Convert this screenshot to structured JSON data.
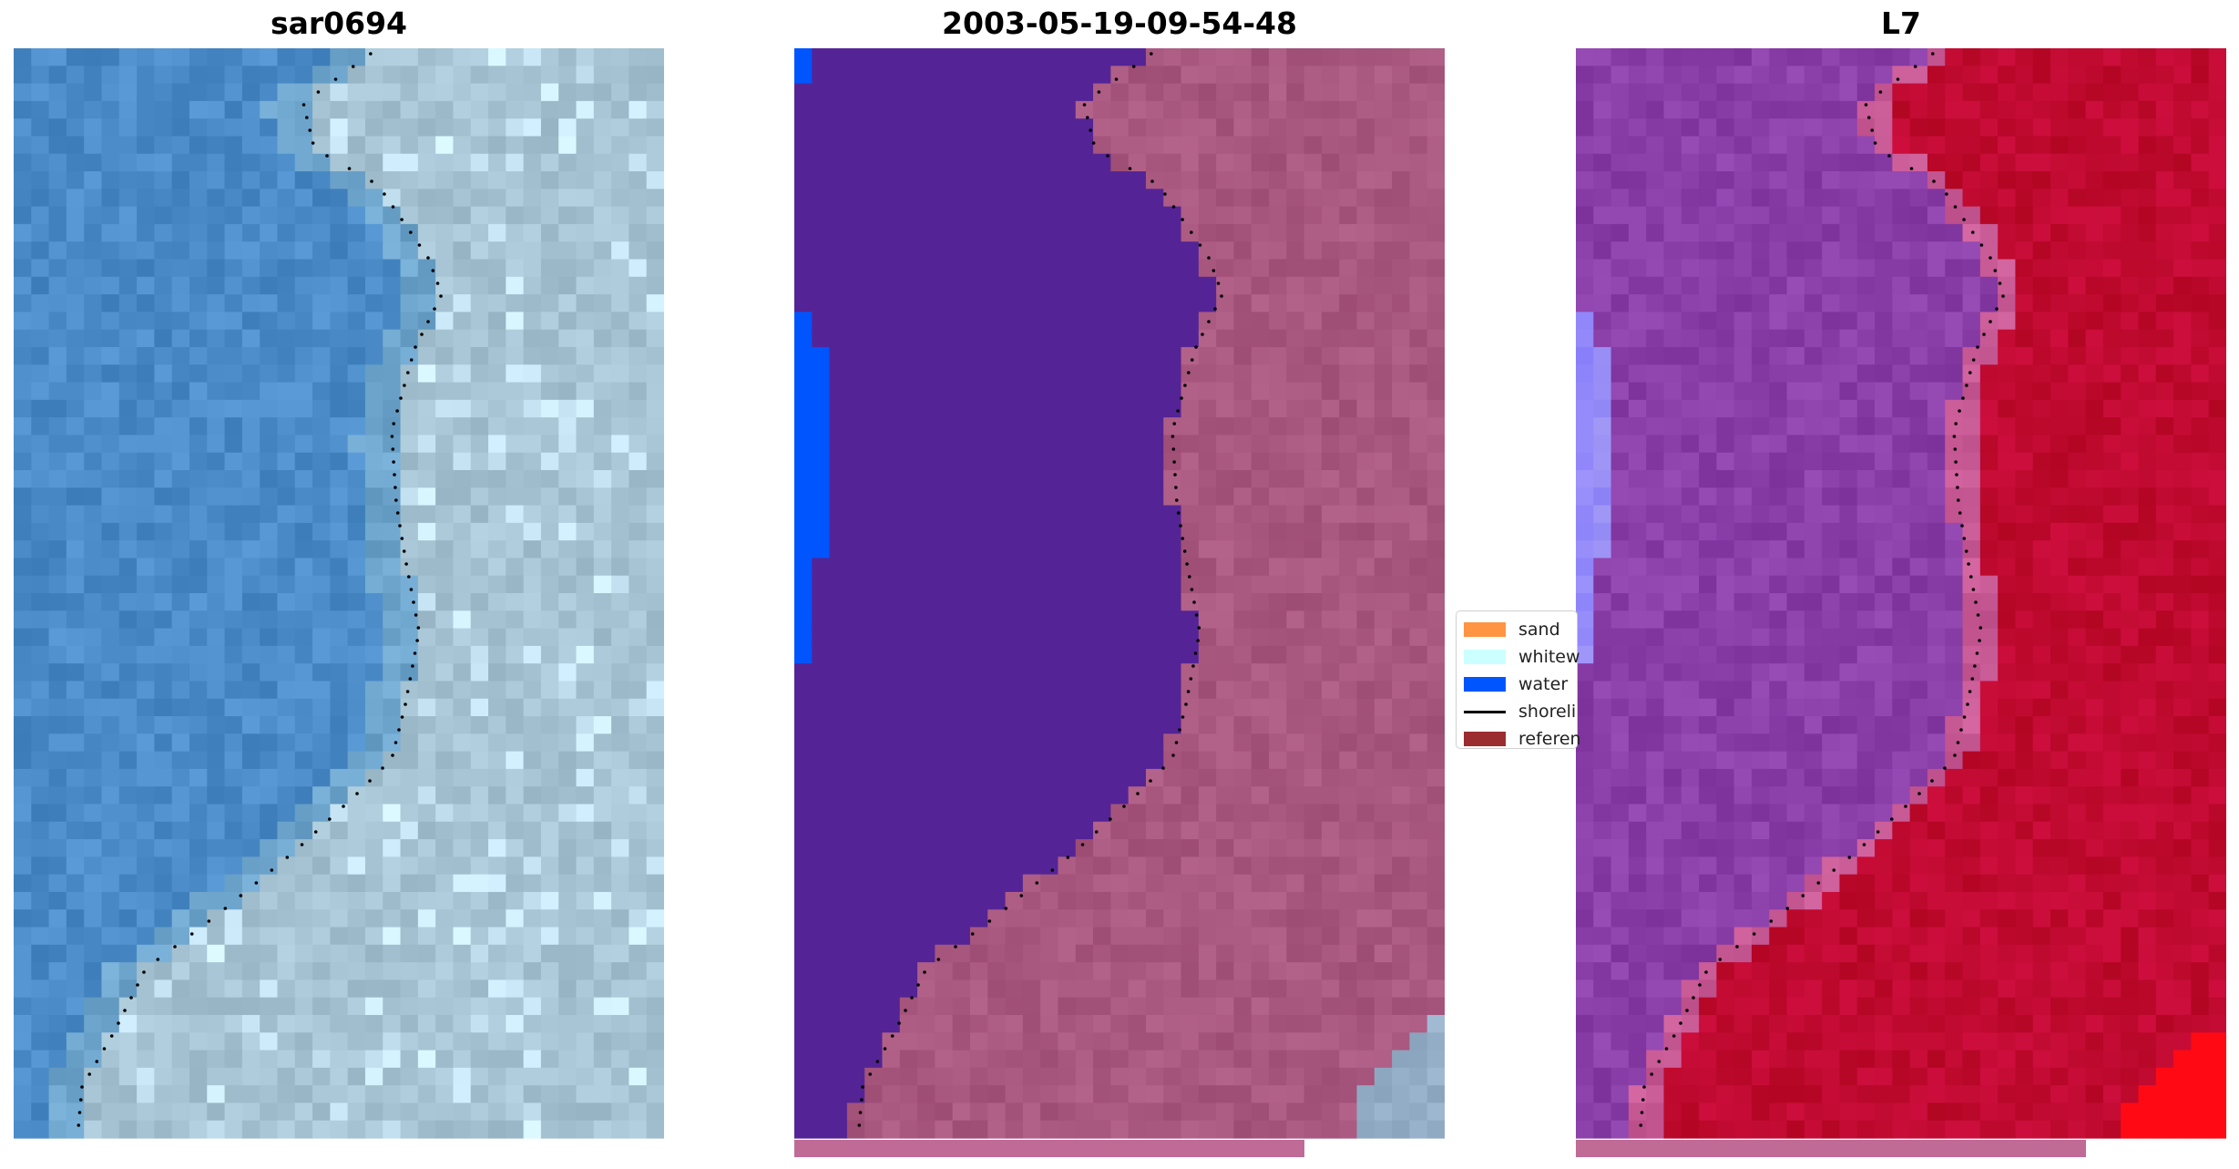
{
  "panels": [
    {
      "title": "sar0694",
      "palette": "rgb"
    },
    {
      "title": "2003-05-19-09-54-48",
      "palette": "classified"
    },
    {
      "title": "L7",
      "palette": "index"
    }
  ],
  "legend": {
    "items": [
      {
        "label": "sand",
        "kind": "patch",
        "color": "#FF9442"
      },
      {
        "label": "whitew",
        "kind": "patch",
        "color": "#CCFFFF"
      },
      {
        "label": "water",
        "kind": "patch",
        "color": "#0055FF"
      },
      {
        "label": "shoreli",
        "kind": "line",
        "color": "#000000"
      },
      {
        "label": "referen",
        "kind": "patch",
        "color": "#9B2D30"
      }
    ]
  },
  "colors": {
    "water_class": "#542496",
    "water_blue": "#0055FF",
    "land_mauve": "#A8577F",
    "reference_bar": "#C06A96",
    "index_land": "#C0062E",
    "index_water": "#8A3EA8"
  }
}
